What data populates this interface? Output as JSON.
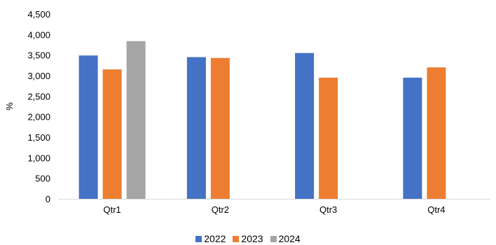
{
  "chart_data": {
    "type": "bar",
    "title": "",
    "xlabel": "",
    "ylabel": "%",
    "ylim": [
      0,
      4500
    ],
    "y_ticks": [
      0,
      500,
      1000,
      1500,
      2000,
      2500,
      3000,
      3500,
      4000,
      4500
    ],
    "y_tick_labels": [
      "0",
      "500",
      "1,000",
      "1,500",
      "2,000",
      "2,500",
      "3,000",
      "3,500",
      "4,000",
      "4,500"
    ],
    "categories": [
      "Qtr1",
      "Qtr2",
      "Qtr3",
      "Qtr4"
    ],
    "series": [
      {
        "name": "2022",
        "color": "#4472C4",
        "values": [
          3490,
          3450,
          3550,
          2950
        ]
      },
      {
        "name": "2023",
        "color": "#ED7D31",
        "values": [
          3150,
          3430,
          2950,
          3200
        ]
      },
      {
        "name": "2024",
        "color": "#A5A5A5",
        "values": [
          3840,
          null,
          null,
          null
        ]
      }
    ],
    "grid": false,
    "legend_position": "bottom"
  }
}
